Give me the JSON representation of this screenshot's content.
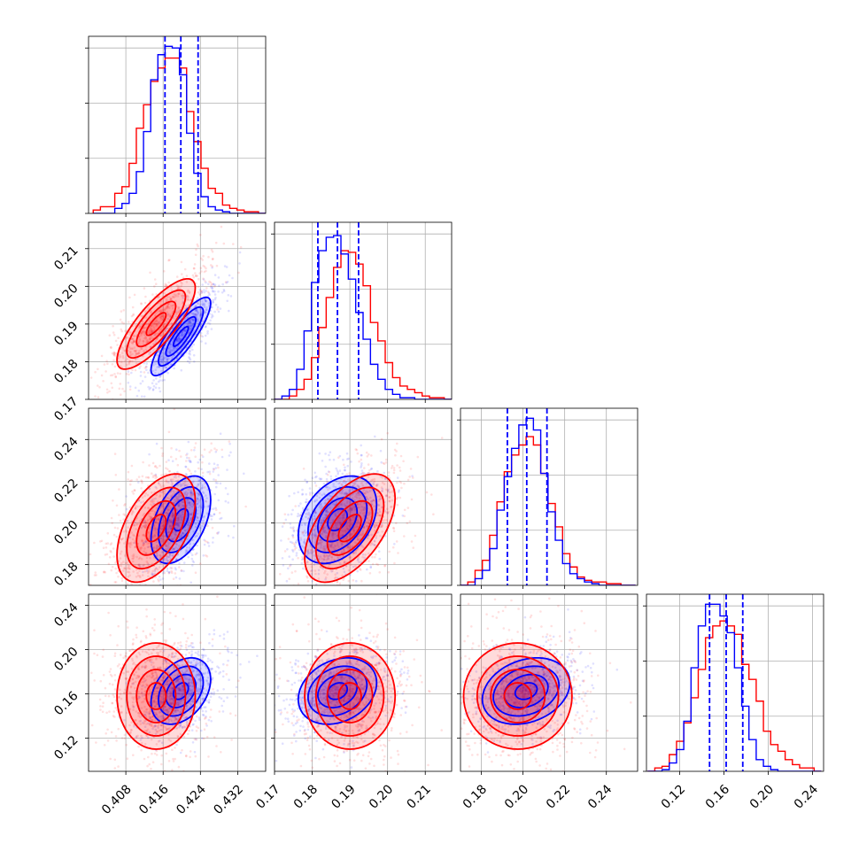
{
  "colors": {
    "red": "#ff0000",
    "blue": "#0000ff",
    "grid": "#b0b0b0"
  },
  "chart_data": {
    "type": "corner",
    "title": "",
    "grid": true,
    "parameters": [
      {
        "range": [
          0.4,
          0.438
        ],
        "ticks": [
          0.408,
          0.416,
          0.424,
          0.432
        ],
        "tick_labels": [
          "0.408",
          "0.416",
          "0.424",
          "0.432"
        ]
      },
      {
        "range": [
          0.17,
          0.217
        ],
        "ticks": [
          0.17,
          0.18,
          0.19,
          0.2,
          0.21
        ],
        "tick_labels": [
          "0.17",
          "0.18",
          "0.19",
          "0.20",
          "0.21"
        ]
      },
      {
        "range": [
          0.17,
          0.255
        ],
        "ticks": [
          0.18,
          0.2,
          0.22,
          0.24
        ],
        "tick_labels": [
          "0.18",
          "0.20",
          "0.22",
          "0.24"
        ]
      },
      {
        "range": [
          0.09,
          0.25
        ],
        "ticks": [
          0.12,
          0.16,
          0.2,
          0.24
        ],
        "tick_labels": [
          "0.12",
          "0.16",
          "0.20",
          "0.24"
        ]
      }
    ],
    "series": [
      {
        "color": "red",
        "means": [
          0.4145,
          0.19,
          0.1975,
          0.158
        ],
        "sds": [
          0.0042,
          0.006,
          0.013,
          0.024
        ],
        "correlations": [
          [
            1,
            0.8,
            0.5,
            0.0
          ],
          [
            0.8,
            1,
            0.55,
            0.0
          ],
          [
            0.5,
            0.55,
            1,
            0.0
          ],
          [
            0.0,
            0.0,
            0.0,
            1
          ]
        ],
        "histograms": [
          {
            "edges": [
              0.401,
              0.438
            ],
            "counts": [
              0.02,
              0.04,
              0.04,
              0.12,
              0.16,
              0.3,
              0.51,
              0.65,
              0.79,
              0.87,
              0.93,
              0.93,
              0.87,
              0.61,
              0.43,
              0.27,
              0.15,
              0.12,
              0.05,
              0.03,
              0.02,
              0.01,
              0.01,
              0.0
            ]
          },
          {
            "edges": [
              0.17,
              0.217
            ],
            "counts": [
              0.0,
              0.0,
              0.02,
              0.06,
              0.12,
              0.25,
              0.43,
              0.61,
              0.79,
              0.89,
              0.88,
              0.81,
              0.68,
              0.46,
              0.35,
              0.22,
              0.13,
              0.08,
              0.06,
              0.04,
              0.02,
              0.01,
              0.01,
              0.0
            ]
          },
          {
            "edges": [
              0.17,
              0.254
            ],
            "counts": [
              0.0,
              0.02,
              0.09,
              0.15,
              0.3,
              0.5,
              0.68,
              0.78,
              0.84,
              0.89,
              0.84,
              0.67,
              0.49,
              0.35,
              0.19,
              0.11,
              0.05,
              0.03,
              0.02,
              0.02,
              0.01,
              0.01,
              0.0,
              0.0
            ]
          },
          {
            "edges": [
              0.091,
              0.248
            ],
            "counts": [
              0.0,
              0.02,
              0.03,
              0.1,
              0.18,
              0.29,
              0.44,
              0.61,
              0.8,
              0.87,
              0.9,
              0.87,
              0.82,
              0.64,
              0.55,
              0.42,
              0.24,
              0.16,
              0.12,
              0.07,
              0.04,
              0.02,
              0.02,
              0.0
            ]
          }
        ]
      },
      {
        "color": "blue",
        "means": [
          0.4198,
          0.1867,
          0.2015,
          0.1625
        ],
        "sds": [
          0.0032,
          0.0052,
          0.0105,
          0.015
        ],
        "correlations": [
          [
            1,
            0.85,
            0.45,
            0.35
          ],
          [
            0.85,
            1,
            0.35,
            0.25
          ],
          [
            0.45,
            0.35,
            1,
            0.25
          ],
          [
            0.35,
            0.25,
            0.25,
            1
          ]
        ],
        "histograms": [
          {
            "edges": [
              0.401,
              0.438
            ],
            "counts": [
              0.0,
              0.0,
              0.0,
              0.03,
              0.06,
              0.12,
              0.25,
              0.49,
              0.8,
              0.95,
              1.0,
              0.99,
              0.83,
              0.48,
              0.24,
              0.1,
              0.04,
              0.02,
              0.01,
              0.0,
              0.0,
              0.0,
              0.0,
              0.0
            ]
          },
          {
            "edges": [
              0.17,
              0.217
            ],
            "counts": [
              0.0,
              0.02,
              0.06,
              0.18,
              0.41,
              0.7,
              0.89,
              0.97,
              0.98,
              0.87,
              0.72,
              0.52,
              0.36,
              0.21,
              0.12,
              0.06,
              0.03,
              0.01,
              0.01,
              0.0,
              0.0,
              0.0,
              0.0,
              0.0
            ]
          },
          {
            "edges": [
              0.17,
              0.254
            ],
            "counts": [
              0.0,
              0.0,
              0.04,
              0.09,
              0.22,
              0.45,
              0.65,
              0.82,
              0.96,
              1.0,
              0.93,
              0.67,
              0.44,
              0.27,
              0.13,
              0.07,
              0.04,
              0.02,
              0.01,
              0.0,
              0.0,
              0.0,
              0.0,
              0.0
            ]
          },
          {
            "edges": [
              0.091,
              0.248
            ],
            "counts": [
              0.0,
              0.0,
              0.01,
              0.05,
              0.13,
              0.3,
              0.62,
              0.87,
              1.0,
              1.0,
              0.93,
              0.83,
              0.62,
              0.39,
              0.19,
              0.07,
              0.03,
              0.01,
              0.0,
              0.0,
              0.0,
              0.0,
              0.0,
              0.0
            ]
          }
        ]
      }
    ],
    "quantile_lines": [
      {
        "color": "blue",
        "style": "dashed",
        "values": [
          0.4164,
          0.4198,
          0.4235
        ]
      },
      {
        "color": "blue",
        "style": "dashed",
        "values": [
          0.1815,
          0.1867,
          0.1923
        ]
      },
      {
        "color": "blue",
        "style": "dashed",
        "values": [
          0.1925,
          0.2018,
          0.2115
        ]
      },
      {
        "color": "blue",
        "style": "dashed",
        "values": [
          0.147,
          0.162,
          0.177
        ]
      }
    ],
    "contour_levels": [
      "0.5-sigma",
      "1-sigma",
      "1.5-sigma",
      "2-sigma"
    ]
  }
}
